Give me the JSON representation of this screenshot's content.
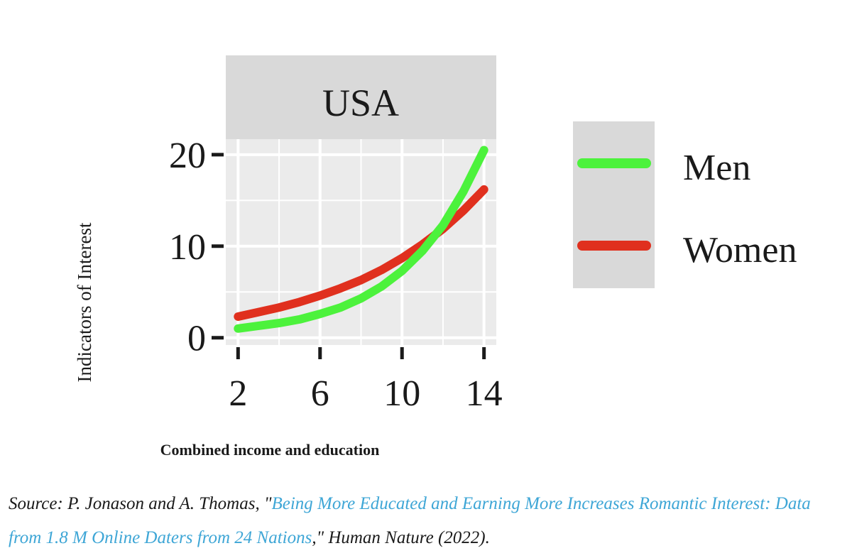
{
  "chart_data": {
    "type": "line",
    "title": "USA",
    "xlabel": "Combined income and education",
    "ylabel": "Indicators of Interest",
    "xlim": [
      1.4,
      14.6
    ],
    "ylim": [
      -0.8,
      21.7
    ],
    "x_ticks": [
      2,
      6,
      10,
      14
    ],
    "y_ticks": [
      0,
      10,
      20
    ],
    "grid": true,
    "legend_position": "right",
    "series": [
      {
        "name": "Men",
        "color": "#4cf23c",
        "x": [
          2,
          3,
          4,
          5,
          6,
          7,
          8,
          9,
          10,
          11,
          12,
          13,
          14
        ],
        "y": [
          1.0,
          1.3,
          1.6,
          2.0,
          2.6,
          3.3,
          4.3,
          5.6,
          7.3,
          9.5,
          12.3,
          16.0,
          20.5
        ]
      },
      {
        "name": "Women",
        "color": "#e0301e",
        "x": [
          2,
          3,
          4,
          5,
          6,
          7,
          8,
          9,
          10,
          11,
          12,
          13,
          14
        ],
        "y": [
          2.3,
          2.8,
          3.3,
          3.9,
          4.6,
          5.4,
          6.3,
          7.4,
          8.7,
          10.2,
          11.9,
          13.9,
          16.2
        ]
      }
    ]
  },
  "caption": {
    "prefix": "Source: P. Jonason and A. Thomas, \"",
    "link_text": "Being More Educated and Earning More Increases Romantic Interest: Data from 1.8 M Online Daters from 24 Nations",
    "suffix": ",\" Human Nature (2022)."
  }
}
